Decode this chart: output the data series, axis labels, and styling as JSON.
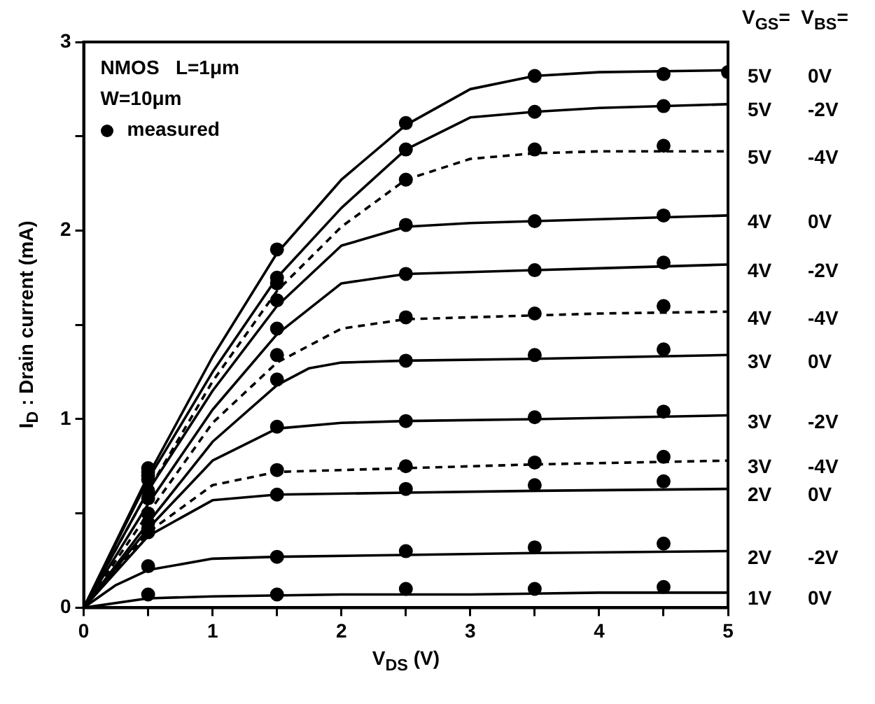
{
  "chart_data": {
    "type": "line",
    "xlabel": "V$_{DS}$ (V)",
    "ylabel": "I$_{D}$ : Drain current (mA)",
    "legend_title": "V$_{GS}$=  V$_{BS}$=",
    "annotations": [
      "NMOS   L=1μm",
      "W=10μm"
    ],
    "xlim": [
      0,
      5
    ],
    "ylim": [
      0,
      3
    ],
    "xticks": [
      0,
      {
        "value": 0.5,
        "label": null
      },
      1,
      {
        "value": 1.5,
        "label": null
      },
      2,
      {
        "value": 2.5,
        "label": null
      },
      3,
      {
        "value": 3.5,
        "label": null
      },
      4,
      {
        "value": 4.5,
        "label": null
      },
      5
    ],
    "yticks": [
      0,
      {
        "value": 0.5,
        "label": null
      },
      1,
      {
        "value": 1.5,
        "label": null
      },
      2,
      {
        "value": 2.5,
        "label": null
      },
      3
    ],
    "grid": false,
    "legend": "top left",
    "marker": "none",
    "series": [
      {
        "name": "5V 0V",
        "color": "#000000",
        "line_style": "solid",
        "x": [
          0,
          0.5,
          1,
          1.5,
          2,
          2.5,
          3,
          3.5,
          4,
          5
        ],
        "values": [
          0,
          0.7,
          1.33,
          1.88,
          2.27,
          2.56,
          2.75,
          2.82,
          2.84,
          2.85
        ]
      },
      {
        "name": "5V -2V",
        "color": "#000000",
        "line_style": "solid",
        "x": [
          0,
          0.5,
          1,
          1.5,
          2,
          2.5,
          3,
          3.5,
          4,
          5
        ],
        "values": [
          0,
          0.68,
          1.25,
          1.75,
          2.12,
          2.43,
          2.6,
          2.63,
          2.65,
          2.67
        ]
      },
      {
        "name": "5V -4V",
        "color": "#000000",
        "line_style": "dashed",
        "x": [
          0,
          0.5,
          1,
          1.5,
          2,
          2.5,
          3,
          3.5,
          4,
          5
        ],
        "values": [
          0,
          0.62,
          1.2,
          1.68,
          2.02,
          2.27,
          2.38,
          2.41,
          2.42,
          2.42
        ]
      },
      {
        "name": "4V 0V",
        "color": "#000000",
        "line_style": "solid",
        "x": [
          0,
          0.5,
          1,
          1.5,
          2,
          2.5,
          3,
          3.5,
          4,
          5
        ],
        "values": [
          0,
          0.62,
          1.15,
          1.6,
          1.92,
          2.02,
          2.04,
          2.05,
          2.06,
          2.08
        ]
      },
      {
        "name": "4V -2V",
        "color": "#000000",
        "line_style": "solid",
        "x": [
          0,
          0.5,
          1,
          1.5,
          2,
          2.5,
          3,
          3.5,
          4,
          5
        ],
        "values": [
          0,
          0.55,
          1.05,
          1.45,
          1.72,
          1.77,
          1.78,
          1.79,
          1.8,
          1.82
        ]
      },
      {
        "name": "4V -4V",
        "color": "#000000",
        "line_style": "dashed",
        "x": [
          0,
          0.5,
          1,
          1.5,
          2,
          2.5,
          3,
          3.5,
          4,
          5
        ],
        "values": [
          0,
          0.5,
          0.98,
          1.3,
          1.48,
          1.53,
          1.54,
          1.55,
          1.56,
          1.57
        ]
      },
      {
        "name": "3V 0V",
        "color": "#000000",
        "line_style": "solid",
        "x": [
          0,
          0.5,
          1,
          1.5,
          1.75,
          2,
          2.5,
          3.5,
          5
        ],
        "values": [
          0,
          0.45,
          0.88,
          1.18,
          1.27,
          1.3,
          1.31,
          1.32,
          1.34
        ]
      },
      {
        "name": "3V -2V",
        "color": "#000000",
        "line_style": "solid",
        "x": [
          0,
          0.5,
          1,
          1.5,
          2,
          2.5,
          3.5,
          5
        ],
        "values": [
          0,
          0.42,
          0.78,
          0.95,
          0.98,
          0.99,
          1.0,
          1.02
        ]
      },
      {
        "name": "3V -4V",
        "color": "#000000",
        "line_style": "dashed",
        "x": [
          0,
          0.5,
          1,
          1.5,
          2.5,
          3.5,
          5
        ],
        "values": [
          0,
          0.4,
          0.65,
          0.72,
          0.74,
          0.76,
          0.78
        ]
      },
      {
        "name": "2V 0V",
        "color": "#000000",
        "line_style": "solid",
        "x": [
          0,
          0.5,
          1,
          1.5,
          2.5,
          3.5,
          5
        ],
        "values": [
          0,
          0.38,
          0.57,
          0.6,
          0.61,
          0.62,
          0.63
        ]
      },
      {
        "name": "2V -2V",
        "color": "#000000",
        "line_style": "solid",
        "x": [
          0,
          0.25,
          0.5,
          1,
          1.5,
          2.5,
          3.5,
          5
        ],
        "values": [
          0,
          0.12,
          0.2,
          0.26,
          0.27,
          0.28,
          0.29,
          0.3
        ]
      },
      {
        "name": "1V 0V",
        "color": "#000000",
        "line_style": "solid",
        "x": [
          0,
          0.5,
          1,
          2,
          3,
          4,
          5
        ],
        "values": [
          0,
          0.05,
          0.06,
          0.07,
          0.07,
          0.08,
          0.08
        ]
      },
      {
        "name": "measured",
        "type": "scatter",
        "color": "#000000",
        "marker": "circle",
        "x": [
          0.5,
          1.5,
          2.5,
          3.5,
          4.5,
          5,
          0.5,
          1.5,
          2.5,
          3.5,
          4.5,
          0.5,
          1.5,
          2.5,
          3.5,
          4.5,
          0.5,
          1.5,
          2.5,
          3.5,
          4.5,
          0.5,
          1.5,
          2.5,
          3.5,
          4.5,
          0.5,
          1.5,
          2.5,
          3.5,
          4.5,
          0.5,
          1.5,
          2.5,
          3.5,
          4.5,
          0.5,
          1.5,
          2.5,
          3.5,
          4.5,
          0.5,
          1.5,
          2.5,
          3.5,
          4.5,
          0.5,
          1.5,
          2.5,
          3.5,
          4.5,
          0.5,
          1.5,
          2.5,
          3.5,
          4.5,
          0.5,
          1.5,
          2.5,
          3.5,
          4.5
        ],
        "values": [
          0.74,
          1.9,
          2.57,
          2.82,
          2.83,
          2.84,
          0.72,
          1.75,
          2.43,
          2.63,
          2.66,
          0.68,
          1.72,
          2.27,
          2.43,
          2.45,
          0.7,
          1.63,
          2.03,
          2.05,
          2.08,
          0.62,
          1.48,
          1.77,
          1.79,
          1.83,
          0.58,
          1.34,
          1.54,
          1.56,
          1.6,
          0.5,
          1.21,
          1.31,
          1.34,
          1.37,
          0.45,
          0.96,
          0.99,
          1.01,
          1.04,
          0.42,
          0.73,
          0.75,
          0.77,
          0.8,
          0.4,
          0.6,
          0.63,
          0.65,
          0.67,
          0.22,
          0.27,
          0.3,
          0.32,
          0.34,
          0.07,
          0.07,
          0.1,
          0.1,
          0.11
        ]
      }
    ]
  }
}
